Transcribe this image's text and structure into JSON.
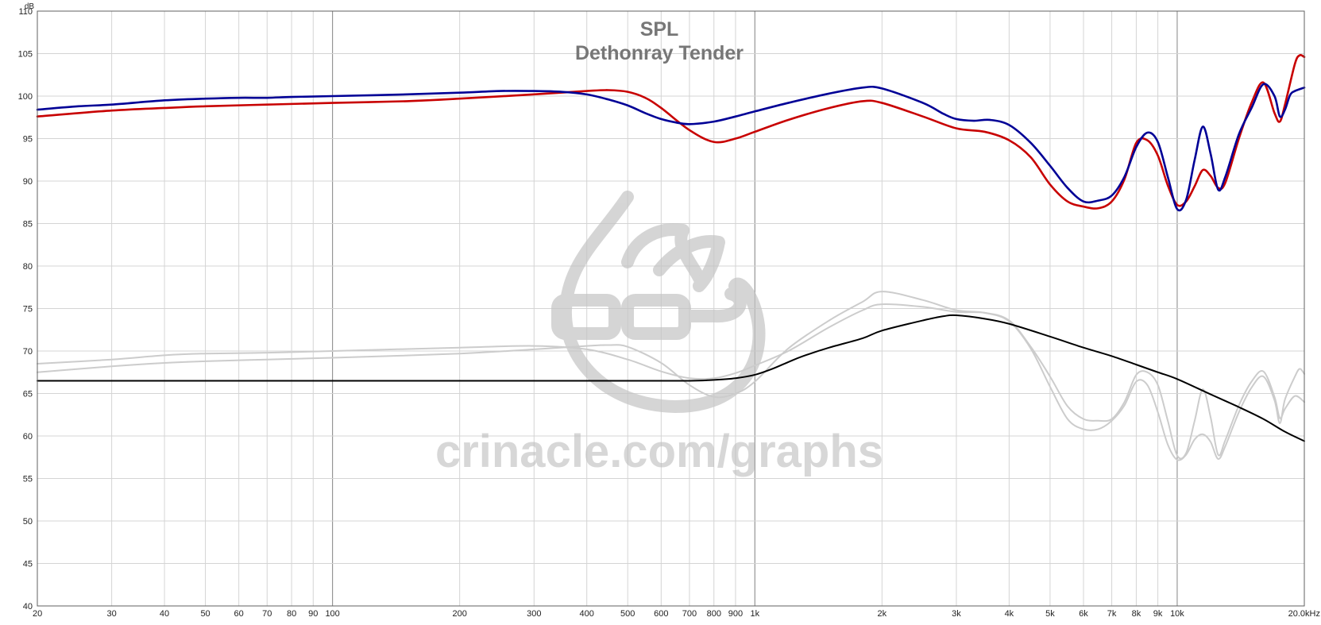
{
  "chart_data": {
    "type": "line",
    "title": "SPL",
    "subtitle": "Dethonray Tender",
    "ylabel": "dB",
    "x_scale": "log",
    "xlim": [
      20,
      20000
    ],
    "ylim": [
      40,
      110
    ],
    "grid": true,
    "y_ticks": [
      40,
      45,
      50,
      55,
      60,
      65,
      70,
      75,
      80,
      85,
      90,
      95,
      100,
      105,
      110
    ],
    "x_ticks": [
      {
        "v": 20,
        "label": "20"
      },
      {
        "v": 30,
        "label": "30"
      },
      {
        "v": 40,
        "label": "40"
      },
      {
        "v": 50,
        "label": "50"
      },
      {
        "v": 60,
        "label": "60"
      },
      {
        "v": 70,
        "label": "70"
      },
      {
        "v": 80,
        "label": "80"
      },
      {
        "v": 90,
        "label": "90"
      },
      {
        "v": 100,
        "label": "100"
      },
      {
        "v": 200,
        "label": "200"
      },
      {
        "v": 300,
        "label": "300"
      },
      {
        "v": 400,
        "label": "400"
      },
      {
        "v": 500,
        "label": "500"
      },
      {
        "v": 600,
        "label": "600"
      },
      {
        "v": 700,
        "label": "700"
      },
      {
        "v": 800,
        "label": "800"
      },
      {
        "v": 900,
        "label": "900"
      },
      {
        "v": 1000,
        "label": "1k"
      },
      {
        "v": 2000,
        "label": "2k"
      },
      {
        "v": 3000,
        "label": "3k"
      },
      {
        "v": 4000,
        "label": "4k"
      },
      {
        "v": 5000,
        "label": "5k"
      },
      {
        "v": 6000,
        "label": "6k"
      },
      {
        "v": 7000,
        "label": "7k"
      },
      {
        "v": 8000,
        "label": "8k"
      },
      {
        "v": 9000,
        "label": "9k"
      },
      {
        "v": 10000,
        "label": "10k"
      },
      {
        "v": 20000,
        "label": "20.0kHz"
      }
    ],
    "watermark": "crinacle.com/graphs",
    "series": [
      {
        "color": "#000096",
        "values": [
          [
            20,
            98.4
          ],
          [
            25,
            98.8
          ],
          [
            30,
            99.0
          ],
          [
            40,
            99.5
          ],
          [
            50,
            99.7
          ],
          [
            60,
            99.8
          ],
          [
            70,
            99.8
          ],
          [
            80,
            99.9
          ],
          [
            100,
            100.0
          ],
          [
            150,
            100.2
          ],
          [
            200,
            100.4
          ],
          [
            250,
            100.6
          ],
          [
            300,
            100.6
          ],
          [
            350,
            100.5
          ],
          [
            400,
            100.2
          ],
          [
            450,
            99.6
          ],
          [
            500,
            98.9
          ],
          [
            550,
            98.0
          ],
          [
            600,
            97.3
          ],
          [
            650,
            96.9
          ],
          [
            700,
            96.7
          ],
          [
            800,
            97.0
          ],
          [
            900,
            97.6
          ],
          [
            1000,
            98.2
          ],
          [
            1200,
            99.2
          ],
          [
            1500,
            100.3
          ],
          [
            1800,
            101.0
          ],
          [
            2000,
            100.9
          ],
          [
            2500,
            99.2
          ],
          [
            2800,
            97.9
          ],
          [
            3000,
            97.3
          ],
          [
            3300,
            97.1
          ],
          [
            3600,
            97.2
          ],
          [
            4000,
            96.6
          ],
          [
            4500,
            94.5
          ],
          [
            5000,
            91.8
          ],
          [
            5500,
            89.2
          ],
          [
            6000,
            87.6
          ],
          [
            6500,
            87.7
          ],
          [
            7000,
            88.3
          ],
          [
            7500,
            90.5
          ],
          [
            8000,
            94.0
          ],
          [
            8500,
            95.7
          ],
          [
            9000,
            94.6
          ],
          [
            9500,
            90.5
          ],
          [
            10000,
            86.7
          ],
          [
            10500,
            87.8
          ],
          [
            11000,
            92.5
          ],
          [
            11500,
            96.4
          ],
          [
            12000,
            93.2
          ],
          [
            12500,
            89.0
          ],
          [
            13000,
            90.5
          ],
          [
            14000,
            95.5
          ],
          [
            15000,
            98.6
          ],
          [
            16000,
            101.4
          ],
          [
            17000,
            100.0
          ],
          [
            17500,
            97.6
          ],
          [
            18000,
            98.4
          ],
          [
            18500,
            100.1
          ],
          [
            19000,
            100.6
          ],
          [
            20000,
            101.0
          ]
        ]
      },
      {
        "color": "#c80000",
        "values": [
          [
            20,
            97.6
          ],
          [
            30,
            98.3
          ],
          [
            40,
            98.6
          ],
          [
            50,
            98.8
          ],
          [
            70,
            99.0
          ],
          [
            100,
            99.2
          ],
          [
            150,
            99.4
          ],
          [
            200,
            99.7
          ],
          [
            300,
            100.2
          ],
          [
            400,
            100.6
          ],
          [
            450,
            100.7
          ],
          [
            500,
            100.5
          ],
          [
            550,
            99.8
          ],
          [
            600,
            98.6
          ],
          [
            700,
            96.0
          ],
          [
            800,
            94.6
          ],
          [
            900,
            95.0
          ],
          [
            1000,
            95.8
          ],
          [
            1200,
            97.2
          ],
          [
            1500,
            98.6
          ],
          [
            1800,
            99.4
          ],
          [
            2000,
            99.2
          ],
          [
            2500,
            97.6
          ],
          [
            3000,
            96.2
          ],
          [
            3500,
            95.8
          ],
          [
            4000,
            94.8
          ],
          [
            4500,
            92.8
          ],
          [
            5000,
            89.6
          ],
          [
            5500,
            87.6
          ],
          [
            6000,
            87.0
          ],
          [
            6500,
            86.8
          ],
          [
            7000,
            87.6
          ],
          [
            7500,
            90.2
          ],
          [
            8000,
            94.5
          ],
          [
            8500,
            94.8
          ],
          [
            9000,
            93.0
          ],
          [
            9500,
            89.5
          ],
          [
            10000,
            87.2
          ],
          [
            10500,
            87.6
          ],
          [
            11000,
            89.4
          ],
          [
            11500,
            91.3
          ],
          [
            12000,
            90.6
          ],
          [
            12500,
            89.2
          ],
          [
            13000,
            89.8
          ],
          [
            14000,
            95.0
          ],
          [
            15000,
            99.2
          ],
          [
            16000,
            101.6
          ],
          [
            17000,
            98.0
          ],
          [
            17500,
            97.0
          ],
          [
            18000,
            99.0
          ],
          [
            19000,
            103.8
          ],
          [
            19500,
            104.8
          ],
          [
            20000,
            104.6
          ]
        ]
      },
      {
        "color": "#000000",
        "values": [
          [
            20,
            66.5
          ],
          [
            50,
            66.5
          ],
          [
            100,
            66.5
          ],
          [
            200,
            66.5
          ],
          [
            500,
            66.5
          ],
          [
            700,
            66.5
          ],
          [
            800,
            66.6
          ],
          [
            900,
            66.8
          ],
          [
            1000,
            67.2
          ],
          [
            1100,
            67.9
          ],
          [
            1200,
            68.7
          ],
          [
            1300,
            69.4
          ],
          [
            1500,
            70.4
          ],
          [
            1800,
            71.5
          ],
          [
            2000,
            72.4
          ],
          [
            2500,
            73.6
          ],
          [
            2800,
            74.1
          ],
          [
            3000,
            74.2
          ],
          [
            3500,
            73.8
          ],
          [
            4000,
            73.2
          ],
          [
            5000,
            71.7
          ],
          [
            6000,
            70.4
          ],
          [
            7000,
            69.4
          ],
          [
            8000,
            68.4
          ],
          [
            9000,
            67.5
          ],
          [
            10000,
            66.7
          ],
          [
            12000,
            64.9
          ],
          [
            14000,
            63.4
          ],
          [
            16000,
            62.0
          ],
          [
            18000,
            60.5
          ],
          [
            20000,
            59.4
          ]
        ]
      },
      {
        "color": "#cccccc",
        "values": [
          [
            20,
            68.5
          ],
          [
            30,
            69.0
          ],
          [
            40,
            69.5
          ],
          [
            50,
            69.7
          ],
          [
            70,
            69.8
          ],
          [
            100,
            70.0
          ],
          [
            200,
            70.4
          ],
          [
            300,
            70.6
          ],
          [
            400,
            70.2
          ],
          [
            500,
            69.0
          ],
          [
            600,
            67.6
          ],
          [
            700,
            66.8
          ],
          [
            800,
            66.8
          ],
          [
            900,
            67.4
          ],
          [
            1000,
            68.3
          ],
          [
            1200,
            70.0
          ],
          [
            1500,
            72.8
          ],
          [
            1800,
            74.8
          ],
          [
            2000,
            75.5
          ],
          [
            2500,
            75.2
          ],
          [
            3000,
            74.6
          ],
          [
            3500,
            74.5
          ],
          [
            4000,
            73.6
          ],
          [
            4500,
            70.5
          ],
          [
            5000,
            67.0
          ],
          [
            5500,
            63.5
          ],
          [
            6000,
            62.0
          ],
          [
            6500,
            61.8
          ],
          [
            7000,
            62.0
          ],
          [
            7500,
            64.0
          ],
          [
            8000,
            67.2
          ],
          [
            8500,
            67.5
          ],
          [
            9000,
            66.0
          ],
          [
            9500,
            61.8
          ],
          [
            10000,
            57.7
          ],
          [
            10500,
            58.0
          ],
          [
            11000,
            61.8
          ],
          [
            11500,
            65.5
          ],
          [
            12000,
            62.2
          ],
          [
            12500,
            57.8
          ],
          [
            13000,
            59.5
          ],
          [
            14000,
            63.6
          ],
          [
            15000,
            66.4
          ],
          [
            16000,
            67.6
          ],
          [
            17000,
            64.6
          ],
          [
            17500,
            62.1
          ],
          [
            18000,
            63.2
          ],
          [
            19000,
            64.7
          ],
          [
            20000,
            64.0
          ]
        ]
      },
      {
        "color": "#cccccc",
        "values": [
          [
            20,
            67.5
          ],
          [
            30,
            68.2
          ],
          [
            40,
            68.6
          ],
          [
            50,
            68.8
          ],
          [
            70,
            69.0
          ],
          [
            100,
            69.2
          ],
          [
            200,
            69.7
          ],
          [
            300,
            70.2
          ],
          [
            400,
            70.6
          ],
          [
            450,
            70.7
          ],
          [
            500,
            70.5
          ],
          [
            600,
            68.6
          ],
          [
            700,
            66.0
          ],
          [
            800,
            64.6
          ],
          [
            900,
            65.0
          ],
          [
            1000,
            66.4
          ],
          [
            1200,
            70.3
          ],
          [
            1500,
            73.6
          ],
          [
            1800,
            75.8
          ],
          [
            2000,
            77.0
          ],
          [
            2500,
            76.0
          ],
          [
            3000,
            74.8
          ],
          [
            3500,
            74.5
          ],
          [
            4000,
            73.5
          ],
          [
            4500,
            70.3
          ],
          [
            5000,
            65.8
          ],
          [
            5500,
            62.0
          ],
          [
            6000,
            60.8
          ],
          [
            6500,
            60.8
          ],
          [
            7000,
            61.8
          ],
          [
            7500,
            63.6
          ],
          [
            8000,
            66.4
          ],
          [
            8500,
            66.0
          ],
          [
            9000,
            62.8
          ],
          [
            9500,
            59.0
          ],
          [
            10000,
            57.2
          ],
          [
            10500,
            57.8
          ],
          [
            11000,
            59.6
          ],
          [
            11500,
            60.2
          ],
          [
            12000,
            59.3
          ],
          [
            12500,
            57.3
          ],
          [
            13000,
            58.8
          ],
          [
            14000,
            62.8
          ],
          [
            15000,
            65.7
          ],
          [
            16000,
            67.0
          ],
          [
            17000,
            64.2
          ],
          [
            17500,
            61.5
          ],
          [
            18000,
            64.3
          ],
          [
            19000,
            67.0
          ],
          [
            19500,
            67.9
          ],
          [
            20000,
            67.3
          ]
        ]
      }
    ]
  }
}
